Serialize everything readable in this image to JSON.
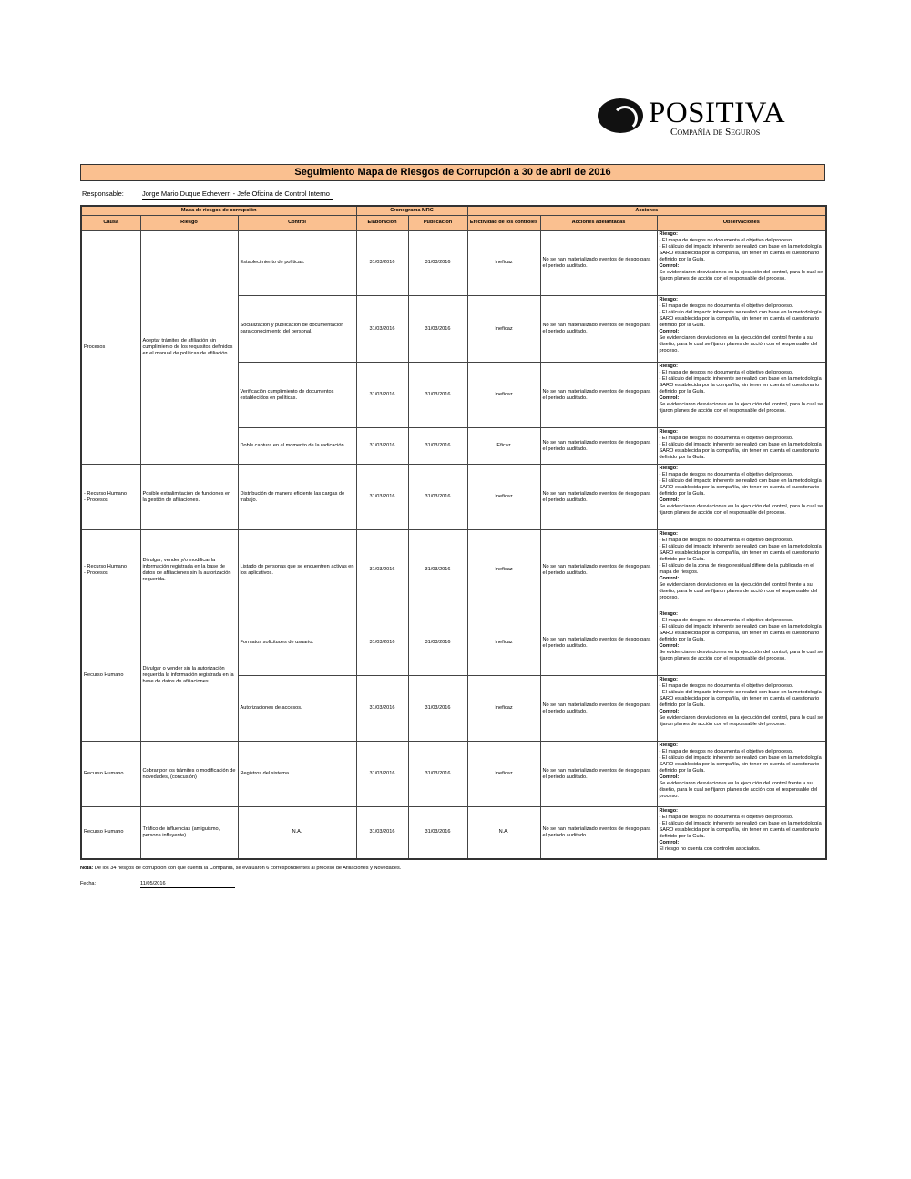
{
  "logo": {
    "name": "POSITIVA",
    "subtitle": "Compañía de Seguros"
  },
  "title": "Seguimiento Mapa de Riesgos de Corrupción  a 30 de abril de 2016",
  "responsable": {
    "label": "Responsable:",
    "value": "Jorge Mario Duque Echeverri - Jefe Oficina de Control Interno"
  },
  "headers": {
    "group1": "Mapa de riesgos de corrupción",
    "group2": "Cronograma MRC",
    "group3": "Acciones",
    "causa": "Causa",
    "riesgo": "Riesgo",
    "control": "Control",
    "elaboracion": "Elaboración",
    "publicacion": "Publicación",
    "efectividad": "Efectividad de los controles",
    "acciones": "Acciones adelantadas",
    "observaciones": "Observaciones"
  },
  "obs_labels": {
    "riesgo": "Riesgo:",
    "control": "Control:"
  },
  "groups": [
    {
      "causa": "Procesos",
      "riesgo": "Aceptar trámites de afiliación sin cumplimiento de los requisitos definidos en el manual de políticas de afiliación.",
      "controls": [
        {
          "control": "Establecimiento de políticas.",
          "elaboracion": "31/03/2016",
          "publicacion": "31/03/2016",
          "efectividad": "Ineficaz",
          "acciones": "No se han materializado eventos de riesgo para el periodo auditado.",
          "obs_riesgo": [
            "- El mapa de riesgos no documenta el objetivo del proceso.",
            "- El cálculo del impacto inherente se realizó con base en la metodología SARO establecida por la compañía, sin tener en cuenta el cuestionario definido por la Guía."
          ],
          "obs_control": "Se evidenciaron desviaciones en la ejecución del control, para lo cual se fijaron planes de acción con el responsable del proceso."
        },
        {
          "control": "Socialización y publicación de documentación para conocimiento del personal.",
          "elaboracion": "31/03/2016",
          "publicacion": "31/03/2016",
          "efectividad": "Ineficaz",
          "acciones": "No se han materializado eventos de riesgo para el periodo auditado.",
          "obs_riesgo": [
            "- El mapa de riesgos no documenta el objetivo del proceso.",
            "- El cálculo del impacto inherente se realizó con base en la metodología SARO establecida por la compañía, sin tener en cuenta el cuestionario definido por la Guía."
          ],
          "obs_control": "Se evidenciaron desviaciones en la ejecución del control frente a su diseño, para lo cual se fijaron planes de acción con el responsable del proceso."
        },
        {
          "control": "Verificación cumplimiento de documentos establecidos en políticas.",
          "elaboracion": "31/03/2016",
          "publicacion": "31/03/2016",
          "efectividad": "Ineficaz",
          "acciones": "No se han materializado eventos de riesgo para el periodo auditado.",
          "obs_riesgo": [
            "- El mapa de riesgos no documenta el objetivo del proceso.",
            "- El cálculo del impacto inherente se realizó con base en la metodología SARO establecida por la compañía, sin tener en cuenta el cuestionario definido por la Guía."
          ],
          "obs_control": "Se evidenciaron desviaciones en la ejecución del control, para lo cual se fijaron planes de acción con el responsable del proceso."
        },
        {
          "control": "Doble captura en el momento de la radicación.",
          "elaboracion": "31/03/2016",
          "publicacion": "31/03/2016",
          "efectividad": "Eficaz",
          "acciones": "No se han materializado eventos de riesgo para el periodo auditado.",
          "obs_riesgo": [
            "- El mapa de riesgos no documenta el objetivo del proceso.",
            "- El cálculo del impacto inherente se realizó con base en la metodología SARO establecida por la compañía, sin tener en cuenta el cuestionario definido por la Guía."
          ],
          "obs_control": ""
        }
      ]
    },
    {
      "causa": "- Recurso Humano\n- Procesos",
      "riesgo": "Posible extralimitación de funciones en la gestión de afiliaciones.",
      "controls": [
        {
          "control": "Distribución de manera eficiente las cargas de trabajo.",
          "elaboracion": "31/03/2016",
          "publicacion": "31/03/2016",
          "efectividad": "Ineficaz",
          "acciones": "No se han materializado eventos de riesgo para el periodo auditado.",
          "obs_riesgo": [
            "- El mapa de riesgos no documenta el objetivo del proceso.",
            "- El cálculo del impacto inherente se realizó con base en la metodología SARO establecida por la compañía, sin tener en cuenta el cuestionario definido por la Guía."
          ],
          "obs_control": "Se evidenciaron desviaciones en la ejecución del control, para lo cual se fijaron planes de acción con el responsable del proceso."
        }
      ]
    },
    {
      "causa": "- Recurso Humano\n- Procesos",
      "riesgo": "Divulgar, vender y/o modificar la información registrada en la base de datos de afiliaciones sin la autorización requerida.",
      "controls": [
        {
          "control": "Listado de personas que se encuentren activas en los aplicativos.",
          "elaboracion": "31/03/2016",
          "publicacion": "31/03/2016",
          "efectividad": "Ineficaz",
          "acciones": "No se han materializado eventos de riesgo para el periodo auditado.",
          "obs_riesgo": [
            "- El mapa de riesgos no documenta el objetivo del proceso.",
            "- El cálculo del impacto inherente se realizó con base en la metodología SARO establecida por la compañía, sin tener en cuenta el cuestionario definido por la Guía.",
            "- El cálculo de la zona de riesgo residual difiere de la publicada en el mapa de riesgos."
          ],
          "obs_control": "Se evidenciaron desviaciones en la ejecución del control frente a su diseño, para lo cual se fijaron planes de acción con el responsable del proceso."
        }
      ]
    },
    {
      "causa": "Recurso Humano",
      "riesgo": "Divulgar o vender sin la autorización requerida la información registrada en la base de datos de afiliaciones.",
      "controls": [
        {
          "control": "Formatos solicitudes de usuario.",
          "elaboracion": "31/03/2016",
          "publicacion": "31/03/2016",
          "efectividad": "Ineficaz",
          "acciones": "No se han materializado eventos de riesgo para el periodo auditado.",
          "obs_riesgo": [
            "- El mapa de riesgos no documenta el objetivo del proceso.",
            "- El cálculo del impacto inherente se realizó con base en la metodología SARO establecida por la compañía, sin tener en cuenta el cuestionario definido por la Guía."
          ],
          "obs_control": "Se evidenciaron desviaciones en la ejecución del control, para lo cual se fijaron planes de acción con el responsable del proceso."
        },
        {
          "control": "Autorizaciones de accesos.",
          "elaboracion": "31/03/2016",
          "publicacion": "31/03/2016",
          "efectividad": "Ineficaz",
          "acciones": "No se han materializado eventos de riesgo para el periodo auditado.",
          "obs_riesgo": [
            "- El mapa de riesgos no documenta el objetivo del proceso.",
            "- El cálculo del impacto inherente se realizó con base en la metodología SARO establecida por la compañía, sin tener en cuenta el cuestionario definido por la Guía."
          ],
          "obs_control": "Se evidenciaron desviaciones en la ejecución del control, para lo cual se fijaron planes de acción con el responsable del proceso."
        }
      ]
    },
    {
      "causa": "Recurso Humano",
      "riesgo": "Cobrar por los trámites o modificación de novedades, (concusión)",
      "controls": [
        {
          "control": "Registros del sistema",
          "elaboracion": "31/03/2016",
          "publicacion": "31/03/2016",
          "efectividad": "Ineficaz",
          "acciones": "No se han materializado eventos de riesgo para el periodo auditado.",
          "obs_riesgo": [
            "- El mapa de riesgos no documenta el objetivo del proceso.",
            "- El cálculo del impacto inherente se realizó con base en la metodología SARO establecida por la compañía, sin tener en cuenta el cuestionario definido por la Guía."
          ],
          "obs_control": "Se evidenciaron desviaciones en la ejecución del control frente a su diseño, para lo cual se fijaron planes de acción con el responsable del proceso."
        }
      ]
    },
    {
      "causa": "Recurso Humano",
      "riesgo": "Tráfico de influencias (amiguismo, persona influyente)",
      "controls": [
        {
          "control": "N.A.",
          "elaboracion": "31/03/2016",
          "publicacion": "31/03/2016",
          "efectividad": "N.A.",
          "acciones": "No se han materializado eventos de riesgo para el periodo auditado.",
          "obs_riesgo": [
            "- El mapa de riesgos no documenta el objetivo del proceso.",
            "- El cálculo del impacto inherente se realizó con base en la metodología SARO establecida por la compañía, sin tener en cuenta el cuestionario definido por la Guía."
          ],
          "obs_control": "El riesgo no cuenta con controles asociados."
        }
      ]
    }
  ],
  "note": {
    "label": "Nota:",
    "text": " De los 34 riesgos de corrupción con que cuenta la Compañía, se evaluaron 6 correspondientes al proceso de Afiliaciones y Novedades."
  },
  "fecha": {
    "label": "Fecha:",
    "value": "11/05/2016"
  }
}
